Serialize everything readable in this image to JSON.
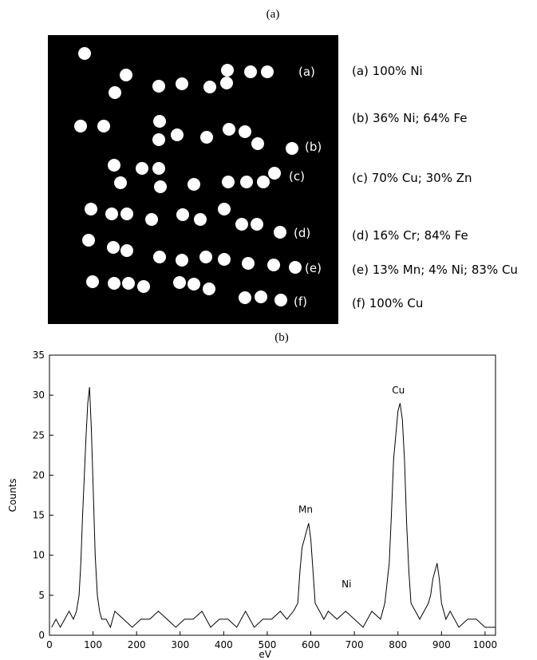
{
  "captions": {
    "a": "(a)",
    "b": "(b)"
  },
  "panel_a": {
    "row_labels": [
      "(a)",
      "(b)",
      "(c)",
      "(d)",
      "(e)",
      "(f)"
    ],
    "legend": [
      "(a)  100% Ni",
      "(b)  36% Ni;  64% Fe",
      "(c)  70% Cu;  30% Zn",
      "(d)  16% Cr;  84% Fe",
      "(e)  13% Mn; 4% Ni; 83% Cu",
      "(f)  100% Cu"
    ],
    "dot_color": "#ffffff",
    "background_color": "#000000"
  },
  "chart_data": {
    "type": "line",
    "xlabel": "eV",
    "ylabel": "Counts",
    "xlim": [
      0,
      1024
    ],
    "ylim": [
      0,
      35
    ],
    "x_ticks": [
      0,
      100,
      200,
      300,
      400,
      500,
      600,
      700,
      800,
      900,
      1000
    ],
    "y_ticks": [
      0,
      5,
      10,
      15,
      20,
      25,
      30,
      35
    ],
    "grid": false,
    "line_color": "#000000",
    "annotations": [
      {
        "text": "Mn",
        "x": 588,
        "y": 15.3
      },
      {
        "text": "Ni",
        "x": 682,
        "y": 6.0
      },
      {
        "text": "Cu",
        "x": 801,
        "y": 30.2
      }
    ],
    "series": [
      {
        "x": [
          5,
          15,
          25,
          35,
          45,
          55,
          62,
          68,
          72,
          76,
          80,
          84,
          88,
          92,
          96,
          100,
          105,
          110,
          115,
          120,
          130,
          140,
          150,
          170,
          190,
          210,
          230,
          250,
          270,
          290,
          310,
          330,
          350,
          370,
          390,
          410,
          430,
          450,
          470,
          490,
          510,
          530,
          545,
          560,
          570,
          575,
          580,
          585,
          590,
          595,
          600,
          605,
          610,
          620,
          630,
          640,
          660,
          680,
          700,
          720,
          740,
          760,
          770,
          780,
          785,
          790,
          795,
          800,
          805,
          810,
          815,
          820,
          825,
          830,
          840,
          850,
          860,
          870,
          875,
          880,
          885,
          890,
          895,
          900,
          910,
          920,
          940,
          960,
          980,
          1000,
          1024
        ],
        "values": [
          1,
          2,
          1,
          2,
          3,
          2,
          3,
          5,
          9,
          15,
          20,
          25,
          29,
          31,
          26,
          19,
          10,
          5,
          3,
          2,
          2,
          1,
          3,
          2,
          1,
          2,
          2,
          3,
          2,
          1,
          2,
          2,
          3,
          1,
          2,
          2,
          1,
          3,
          1,
          2,
          2,
          3,
          2,
          3,
          4,
          8,
          11,
          12,
          13,
          14,
          12,
          8,
          4,
          3,
          2,
          3,
          2,
          3,
          2,
          1,
          3,
          2,
          4,
          9,
          15,
          22,
          25,
          28,
          29,
          27,
          22,
          14,
          8,
          4,
          3,
          2,
          3,
          4,
          5,
          7,
          8,
          9,
          7,
          4,
          2,
          3,
          1,
          2,
          2,
          1,
          1
        ]
      }
    ]
  }
}
